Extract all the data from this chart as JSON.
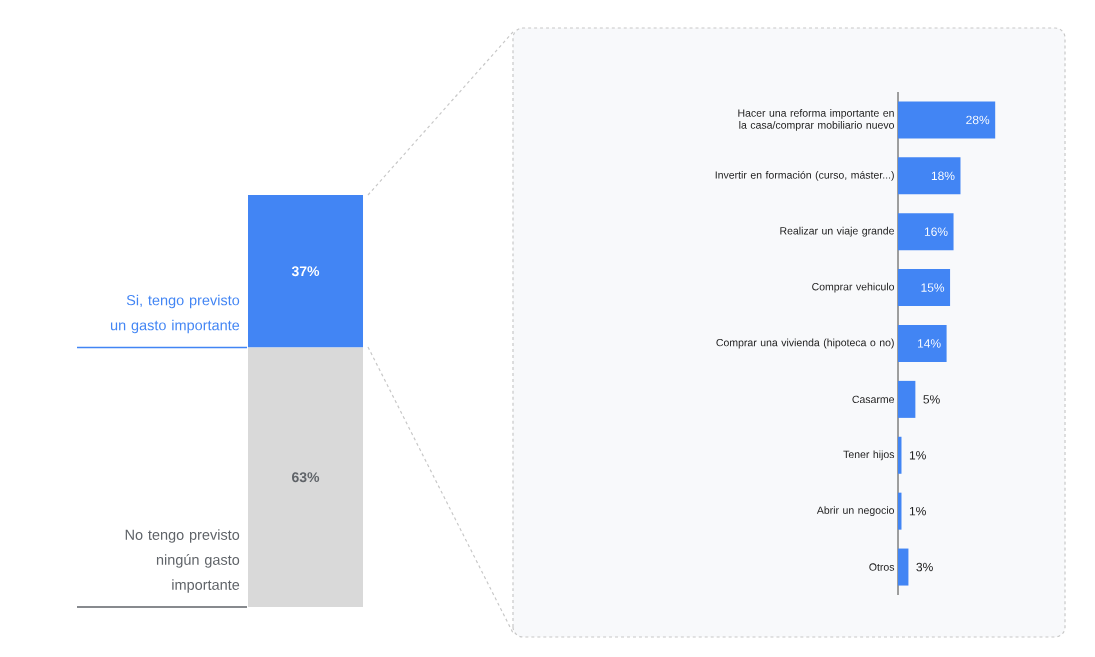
{
  "chart_data": [
    {
      "type": "bar",
      "stacked": true,
      "categories": [
        null
      ],
      "tick_labels": false,
      "series": [
        {
          "name": "No tengo previsto ningún gasto importante",
          "color": "#d9d9d9",
          "values": [
            63
          ],
          "value_labels": [
            "63%"
          ]
        },
        {
          "name": "Si, tengo previsto un gasto importante",
          "color": "#4285f4",
          "values": [
            37
          ],
          "value_labels": [
            "37%"
          ]
        }
      ]
    },
    {
      "type": "bar",
      "orientation": "horizontal",
      "tick_labels": "y",
      "color": "#4285f4",
      "categories": [
        "Hacer una reforma importante en la casa/comprar mobiliario nuevo",
        "Invertir en formación (curso, máster...)",
        "Realizar un viaje grande",
        "Comprar vehiculo",
        "Comprar una vivienda (hipoteca o no)",
        "Casarme",
        "Tener hijos",
        "Abrir un negocio",
        "Otros"
      ],
      "values": [
        28,
        18,
        16,
        15,
        14,
        5,
        1,
        1,
        3
      ],
      "value_labels": [
        "28%",
        "18%",
        "16%",
        "15%",
        "14%",
        "5%",
        "1%",
        "1%",
        "3%"
      ]
    }
  ]
}
